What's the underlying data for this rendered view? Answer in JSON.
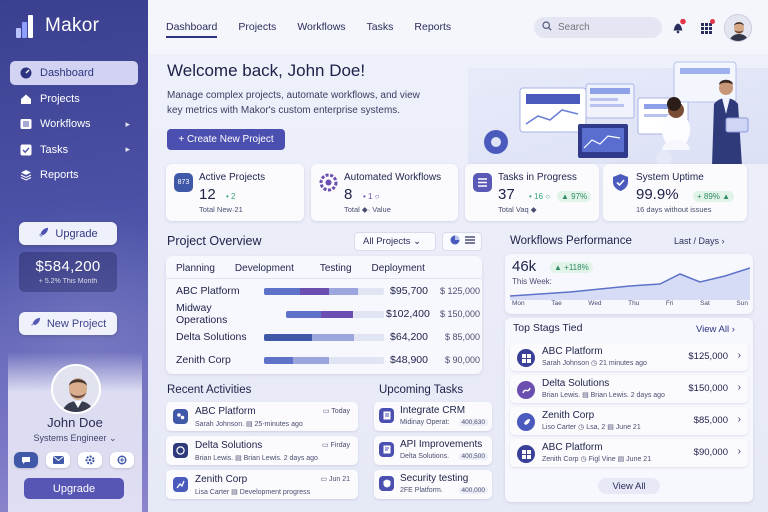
{
  "app": {
    "name": "Makor"
  },
  "sidebar": {
    "items": [
      {
        "label": "Dashboard",
        "icon": "dashboard-icon",
        "active": true
      },
      {
        "label": "Projects",
        "icon": "home-icon"
      },
      {
        "label": "Workflows",
        "icon": "list-icon",
        "chevron": "▸"
      },
      {
        "label": "Tasks",
        "icon": "check-icon",
        "chevron": "▸"
      },
      {
        "label": "Reports",
        "icon": "layers-icon"
      }
    ],
    "upgrade_label": "Upgrade",
    "revenue": {
      "value": "$584,200",
      "sub": "+ 5.2% This Month"
    },
    "new_project_label": "New Project",
    "profile": {
      "name": "John Doe",
      "role": "Systems Engineer ⌄"
    },
    "upgrade_bottom_label": "Upgrade"
  },
  "topnav": {
    "tabs": [
      "Dashboard",
      "Projects",
      "Workflows",
      "Tasks",
      "Reports"
    ],
    "search_placeholder": "Search"
  },
  "hero": {
    "title": "Welcome back, John Doe!",
    "description": "Manage complex projects, automate workflows, and view key metrics with Makor's custom enterprise systems.",
    "create_label": "+ Create New Project"
  },
  "stats": [
    {
      "title": "Active Projects",
      "value": "12",
      "change": "• 2",
      "sub": "Total  New·21",
      "icon_text": "873",
      "color": "#3f58a8"
    },
    {
      "title": "Automated Workflows",
      "value": "8",
      "change": "• 1 ○",
      "sub": "Total  ◆· Value",
      "color": "#6a4fb0"
    },
    {
      "title": "Tasks in Progress",
      "value": "37",
      "change": "• 16 ○",
      "badge": "▲ 97%",
      "sub": "Total  Vaq  ◆",
      "color": "#5a59b8"
    },
    {
      "title": "System Uptime",
      "value": "99.9%",
      "badge": "+ 89% ▲",
      "sub": "16 days without issues",
      "color": "#4b5bbd"
    }
  ],
  "project_overview": {
    "title": "Project Overview",
    "filter": "All Projects ⌄",
    "tabs": [
      "Planning",
      "Development",
      "Testing",
      "Deployment"
    ],
    "rows": [
      {
        "name": "ABC Platform",
        "budget": "$95,700",
        "total": "$ 125,000",
        "progress": 0.78
      },
      {
        "name": "Midway Operations",
        "budget": "$102,400",
        "total": "$ 150,000",
        "progress": 0.68
      },
      {
        "name": "Delta Solutions",
        "budget": "$64,200",
        "total": "$ 85,000",
        "progress": 0.75
      },
      {
        "name": "Zenith Corp",
        "budget": "$48,900",
        "total": "$ 90,000",
        "progress": 0.54
      }
    ]
  },
  "recent_activities": {
    "title": "Recent Activities",
    "items": [
      {
        "title": "ABC Platform",
        "sub": "Sarah Johnson.  ▤  25-minutes ago",
        "time": "▭ Today"
      },
      {
        "title": "Delta Solutions",
        "sub": "Brian Lewis.  ▤ Brian Lewis.    2 days ago",
        "time": "▭ Firday"
      },
      {
        "title": "Zenith Corp",
        "sub": "Lisa Carter  ▤  Development progress",
        "time": "▭ Jun 21"
      }
    ]
  },
  "upcoming_tasks": {
    "title": "Upcoming Tasks",
    "items": [
      {
        "title": "Integrate CRM",
        "sub": "Midinay Operat:",
        "num": "400,630"
      },
      {
        "title": "API Improvements",
        "sub": "Delta Solutions.",
        "num": "400,500"
      },
      {
        "title": "Security testing",
        "sub": "2FE  Platform.",
        "num": "400,000"
      }
    ]
  },
  "workflows_performance": {
    "title": "Workflows Performance",
    "range": "Last  /  Days  ›",
    "value": "46k",
    "badge": "▲ +118%",
    "caption": "This Week:",
    "days": [
      "Mon",
      "Tae",
      "Wed",
      "Thu",
      "Fri",
      "Sat",
      "Sun"
    ]
  },
  "top_stages": {
    "title": "Top Stags Tied",
    "view_all": "View All  ›",
    "rows": [
      {
        "title": "ABC Platform",
        "sub": "Sarah Johnson  ◷  21 minutes ago",
        "amount": "$125,000"
      },
      {
        "title": "Delta Solutions",
        "sub": "Brian Lewis.  ▤  Brian Lewis.    2 days ago",
        "amount": "$150,000"
      },
      {
        "title": "Zenith Corp",
        "sub": "Liso Carter  ◷  Lsa, 2  ▤  June 21",
        "amount": "$85,000"
      },
      {
        "title": "ABC Platform",
        "sub": "Zenith Corp  ◷  Figl Vine  ▤  June 21",
        "amount": "$90,000"
      }
    ],
    "view_all_bottom": "View All"
  },
  "colors": {
    "accent": "#4b4fb0",
    "sidebar": "#3b3f8f",
    "bar_a": "#5d72c8",
    "bar_b": "#6a4fb0",
    "bar_c": "#9aa6dd"
  }
}
